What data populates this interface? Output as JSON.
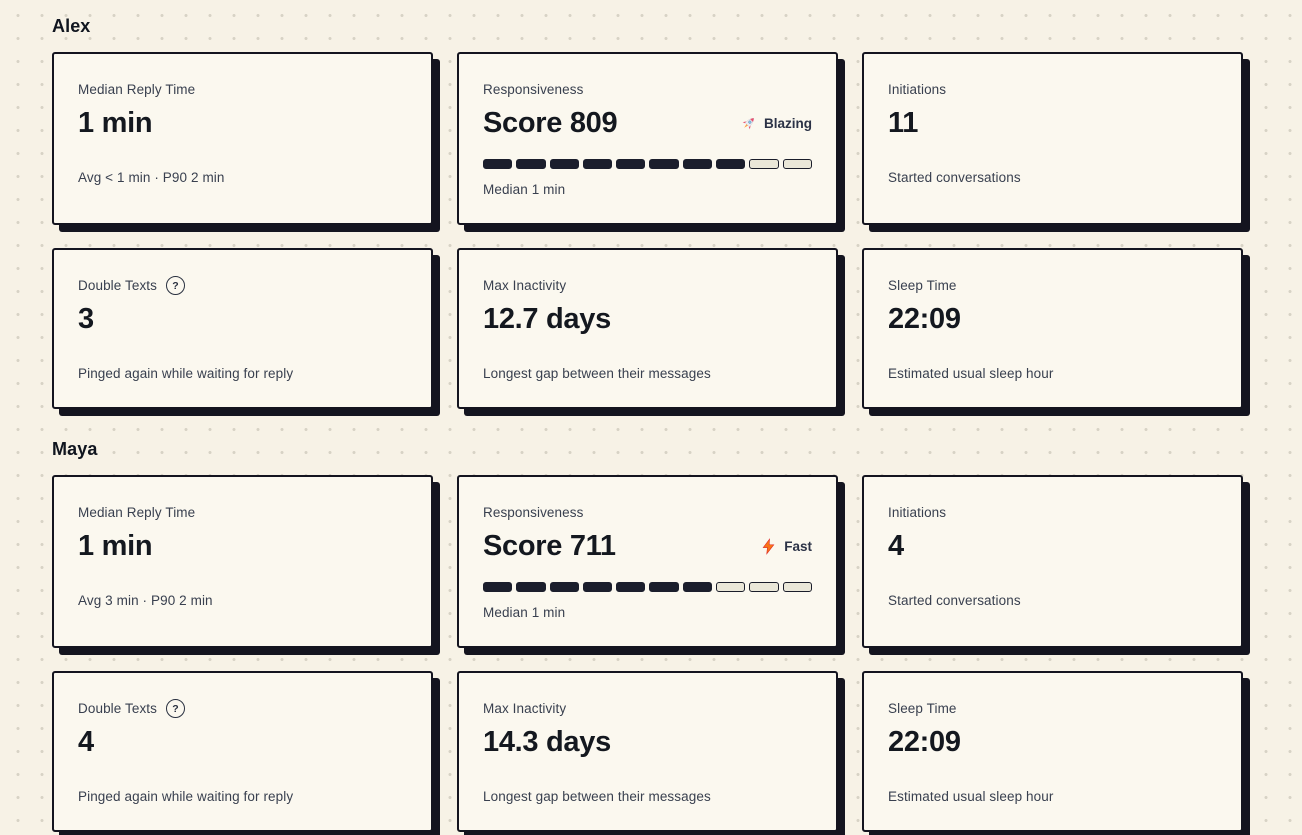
{
  "page": {
    "background_color": "#f7f2e6",
    "dot_color": "#d7d3c5",
    "card_background": "#fbf8ef",
    "border_color": "#14141f",
    "meter_fill_color": "#1b1e2c",
    "meter_empty_color": "#eae7d8"
  },
  "people": [
    {
      "name": "Alex",
      "cards": {
        "median_reply": {
          "label": "Median Reply Time",
          "value": "1 min",
          "sub": "Avg < 1 min · P90 2 min"
        },
        "responsiveness": {
          "label": "Responsiveness",
          "value": "Score 809",
          "badge": {
            "icon": "rocket-icon",
            "label": "Blazing"
          },
          "segments_total": 10,
          "segments_filled": 8,
          "sub": "Median 1 min"
        },
        "initiations": {
          "label": "Initiations",
          "value": "11",
          "sub": "Started conversations"
        },
        "double_texts": {
          "label": "Double Texts",
          "help_icon": "?",
          "value": "3",
          "sub": "Pinged again while waiting for reply"
        },
        "max_inactivity": {
          "label": "Max Inactivity",
          "value": "12.7 days",
          "sub": "Longest gap between their messages"
        },
        "sleep_time": {
          "label": "Sleep Time",
          "value": "22:09",
          "sub": "Estimated usual sleep hour"
        }
      }
    },
    {
      "name": "Maya",
      "cards": {
        "median_reply": {
          "label": "Median Reply Time",
          "value": "1 min",
          "sub": "Avg 3 min · P90 2 min"
        },
        "responsiveness": {
          "label": "Responsiveness",
          "value": "Score 711",
          "badge": {
            "icon": "zap-icon",
            "label": "Fast"
          },
          "segments_total": 10,
          "segments_filled": 7,
          "sub": "Median 1 min"
        },
        "initiations": {
          "label": "Initiations",
          "value": "4",
          "sub": "Started conversations"
        },
        "double_texts": {
          "label": "Double Texts",
          "help_icon": "?",
          "value": "4",
          "sub": "Pinged again while waiting for reply"
        },
        "max_inactivity": {
          "label": "Max Inactivity",
          "value": "14.3 days",
          "sub": "Longest gap between their messages"
        },
        "sleep_time": {
          "label": "Sleep Time",
          "value": "22:09",
          "sub": "Estimated usual sleep hour"
        }
      }
    }
  ]
}
